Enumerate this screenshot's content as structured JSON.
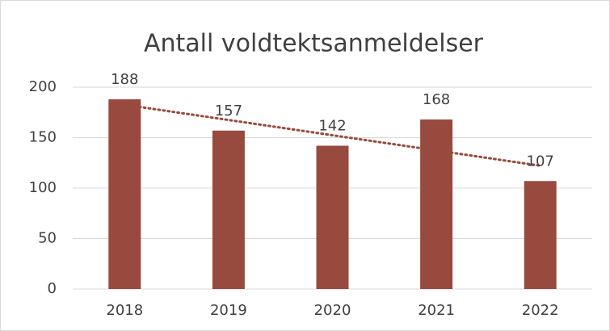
{
  "chart_data": {
    "type": "bar",
    "title": "Antall voldtektsanmeldelser",
    "categories": [
      "2018",
      "2019",
      "2020",
      "2021",
      "2022"
    ],
    "values": [
      188,
      157,
      142,
      168,
      107
    ],
    "color": "#984a3e",
    "ylim": [
      0,
      200
    ],
    "yticks": [
      0,
      50,
      100,
      150,
      200
    ],
    "grid": true,
    "trendline": "linear",
    "trendline_color": "#984a3e"
  }
}
